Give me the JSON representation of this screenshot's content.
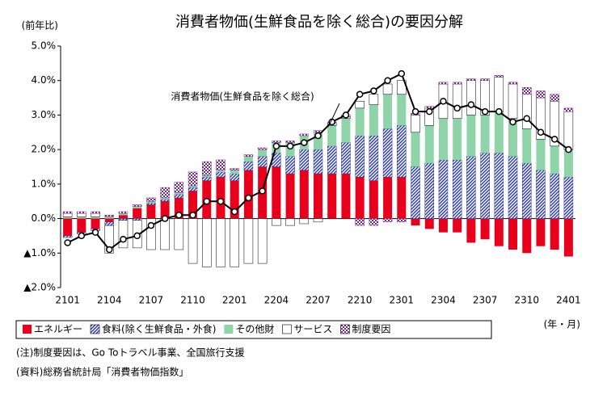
{
  "chart_data": {
    "type": "bar",
    "title": "消費者物価(生鮮食品を除く総合)の要因分解",
    "y_label": "(前年比)",
    "x_label": "(年・月)",
    "categories": [
      "2101",
      null,
      null,
      "2104",
      null,
      null,
      "2107",
      null,
      null,
      "2110",
      null,
      null,
      "2201",
      null,
      null,
      "2204",
      null,
      null,
      "2207",
      null,
      null,
      "2210",
      null,
      null,
      "2301",
      null,
      null,
      "2304",
      null,
      null,
      "2307",
      null,
      null,
      "2310",
      null,
      null,
      "2401"
    ],
    "series": [
      {
        "name": "エネルギー",
        "color": "#e8001c",
        "values": [
          -0.5,
          -0.4,
          -0.3,
          -0.1,
          0.1,
          0.3,
          0.4,
          0.5,
          0.6,
          0.8,
          1.1,
          1.2,
          1.1,
          1.4,
          1.5,
          1.5,
          1.3,
          1.4,
          1.3,
          1.3,
          1.3,
          1.2,
          1.1,
          1.2,
          1.2,
          -0.2,
          -0.3,
          -0.4,
          -0.4,
          -0.7,
          -0.6,
          -0.8,
          -0.9,
          -1.0,
          -0.8,
          -0.9,
          -1.1
        ]
      },
      {
        "name": "食料(除く生鮮食品・外食)",
        "color": "#2b3a9e",
        "pattern": "hatch",
        "values": [
          -0.05,
          -0.05,
          -0.05,
          -0.1,
          -0.05,
          -0.05,
          0.05,
          0.05,
          0.1,
          0.1,
          0.1,
          0.15,
          0.2,
          0.25,
          0.3,
          0.4,
          0.5,
          0.6,
          0.7,
          0.8,
          0.9,
          1.2,
          1.3,
          1.4,
          1.5,
          1.5,
          1.6,
          1.7,
          1.7,
          1.8,
          1.9,
          1.9,
          1.8,
          1.6,
          1.4,
          1.3,
          1.2
        ]
      },
      {
        "name": "その他財",
        "color": "#8fd3a8",
        "values": [
          0.05,
          0.05,
          0.05,
          0.05,
          0.05,
          0.05,
          0.05,
          0.05,
          0.05,
          0.05,
          0.05,
          0.05,
          0.1,
          0.15,
          0.2,
          0.3,
          0.4,
          0.4,
          0.5,
          0.6,
          0.7,
          0.8,
          0.9,
          1.0,
          0.9,
          1.0,
          1.1,
          1.2,
          1.2,
          1.2,
          1.1,
          1.2,
          1.1,
          1.0,
          0.9,
          0.8,
          0.8
        ]
      },
      {
        "name": "サービス",
        "color": "#ffffff",
        "values": [
          0.1,
          0.1,
          0.1,
          -0.8,
          -0.8,
          -0.8,
          -0.9,
          -0.9,
          -0.9,
          -1.3,
          -1.4,
          -1.4,
          -1.4,
          -1.3,
          -1.3,
          -0.2,
          -0.2,
          -0.15,
          -0.1,
          0.05,
          0.05,
          0.2,
          0.3,
          0.3,
          0.4,
          0.5,
          0.5,
          1.0,
          1.0,
          1.0,
          1.0,
          1.0,
          1.0,
          1.0,
          1.2,
          1.3,
          1.1
        ]
      },
      {
        "name": "制度要因",
        "color": "#7a2a8c",
        "pattern": "check",
        "values": [
          0.05,
          0.05,
          0.05,
          0.05,
          0.05,
          0.05,
          0.1,
          0.3,
          0.3,
          0.4,
          0.4,
          0.3,
          0.05,
          0.05,
          0.05,
          0.05,
          0.05,
          0.05,
          0.05,
          0.05,
          0.05,
          -0.2,
          -0.2,
          -0.1,
          -0.1,
          0.05,
          0.05,
          0.05,
          0.05,
          0.05,
          0.05,
          0.05,
          0.05,
          0.2,
          0.2,
          0.2,
          0.1
        ]
      }
    ],
    "line": {
      "name": "消費者物価(生鮮食品を除く総合)",
      "color": "#000000",
      "values": [
        -0.7,
        -0.5,
        -0.4,
        -0.9,
        -0.6,
        -0.5,
        -0.2,
        0.0,
        0.1,
        0.1,
        0.5,
        0.5,
        0.2,
        0.6,
        0.8,
        2.1,
        2.1,
        2.2,
        2.4,
        2.8,
        3.0,
        3.6,
        3.7,
        4.0,
        4.2,
        3.1,
        3.1,
        3.4,
        3.2,
        3.3,
        3.1,
        3.1,
        2.8,
        2.9,
        2.5,
        2.3,
        2.0
      ]
    },
    "ylim": [
      -2,
      5
    ],
    "yticks": [
      {
        "value": -2,
        "label": "▲2.0%"
      },
      {
        "value": -1,
        "label": "▲1.0%"
      },
      {
        "value": 0,
        "label": "0.0%"
      },
      {
        "value": 1,
        "label": "1.0%"
      },
      {
        "value": 2,
        "label": "2.0%"
      },
      {
        "value": 3,
        "label": "3.0%"
      },
      {
        "value": 4,
        "label": "4.0%"
      },
      {
        "value": 5,
        "label": "5.0%"
      }
    ],
    "grid": false
  },
  "notes": [
    "(注)制度要因は、Go Toトラベル事業、全国旅行支援",
    "(資料)総務省統計局「消費者物価指数」"
  ]
}
